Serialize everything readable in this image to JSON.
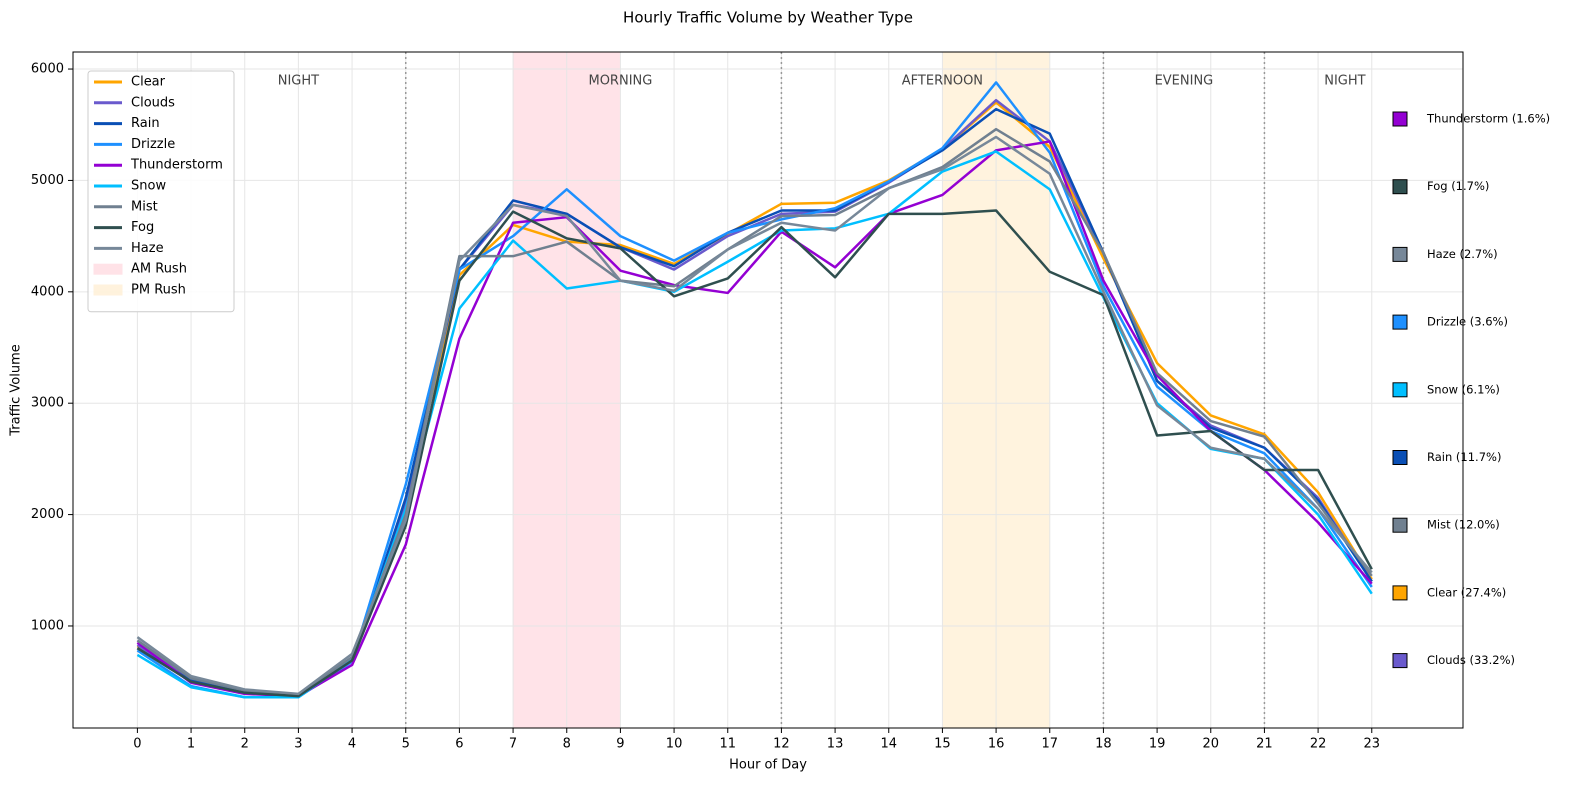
{
  "chart_data": {
    "type": "line",
    "title": "Hourly Traffic Volume by Weather Type",
    "x_label": "Hour of Day",
    "y_label": "Traffic Volume",
    "x": [
      0,
      1,
      2,
      3,
      4,
      5,
      6,
      7,
      8,
      9,
      10,
      11,
      12,
      13,
      14,
      15,
      16,
      17,
      18,
      19,
      20,
      21,
      22,
      23
    ],
    "xlim": [
      -1.2,
      24.7
    ],
    "xticks": [
      0,
      1,
      2,
      3,
      4,
      5,
      6,
      7,
      8,
      9,
      10,
      11,
      12,
      13,
      14,
      15,
      16,
      17,
      18,
      19,
      20,
      21,
      22,
      23
    ],
    "ylim": [
      84,
      6153
    ],
    "yticks": [
      1000,
      2000,
      3000,
      4000,
      5000,
      6000
    ],
    "grid": true,
    "legend": "upper left",
    "series": [
      {
        "name": "Clear",
        "color": "#ffa500",
        "values": [
          820,
          520,
          410,
          375,
          700,
          2050,
          4150,
          4600,
          4450,
          4420,
          4250,
          4520,
          4790,
          4800,
          5000,
          5280,
          5700,
          5300,
          4300,
          3360,
          2890,
          2720,
          2200,
          1420
        ]
      },
      {
        "name": "Clouds",
        "color": "#6a5acd",
        "values": [
          830,
          520,
          410,
          380,
          700,
          2100,
          4200,
          4780,
          4700,
          4400,
          4200,
          4500,
          4700,
          4720,
          4980,
          5280,
          5720,
          5350,
          4350,
          3200,
          2800,
          2600,
          2150,
          1400
        ]
      },
      {
        "name": "Rain",
        "color": "#0a4fb5",
        "values": [
          800,
          510,
          400,
          375,
          680,
          2150,
          4200,
          4820,
          4700,
          4400,
          4230,
          4530,
          4730,
          4730,
          4990,
          5270,
          5640,
          5420,
          4350,
          3200,
          2780,
          2600,
          2130,
          1400
        ]
      },
      {
        "name": "Drizzle",
        "color": "#1e90ff",
        "values": [
          780,
          460,
          360,
          360,
          680,
          2270,
          4200,
          4500,
          4920,
          4500,
          4280,
          4530,
          4650,
          4750,
          4990,
          5290,
          5880,
          5250,
          4050,
          3150,
          2750,
          2550,
          2050,
          1350
        ]
      },
      {
        "name": "Thunderstorm",
        "color": "#9400d3",
        "values": [
          850,
          490,
          390,
          370,
          650,
          1730,
          3580,
          4620,
          4670,
          4190,
          4060,
          3990,
          4540,
          4220,
          4700,
          4870,
          5270,
          5350,
          4100,
          3250,
          2750,
          2400,
          1930,
          1380
        ]
      },
      {
        "name": "Snow",
        "color": "#00bfff",
        "values": [
          740,
          450,
          360,
          360,
          700,
          2050,
          3850,
          4460,
          4030,
          4100,
          4000,
          4270,
          4550,
          4570,
          4700,
          5080,
          5260,
          4920,
          3950,
          3000,
          2590,
          2500,
          2000,
          1290
        ]
      },
      {
        "name": "Mist",
        "color": "#708090",
        "values": [
          870,
          530,
          420,
          385,
          720,
          2000,
          4320,
          4320,
          4450,
          4100,
          4050,
          4380,
          4680,
          4690,
          4930,
          5120,
          5460,
          5170,
          4350,
          3270,
          2840,
          2700,
          2100,
          1450
        ]
      },
      {
        "name": "Fog",
        "color": "#2f4f4f",
        "values": [
          800,
          500,
          400,
          370,
          690,
          1900,
          4100,
          4720,
          4480,
          4390,
          3960,
          4120,
          4580,
          4130,
          4700,
          4700,
          4730,
          4180,
          3970,
          2710,
          2750,
          2400,
          2400,
          1510
        ]
      },
      {
        "name": "Haze",
        "color": "#778899",
        "values": [
          900,
          550,
          430,
          390,
          750,
          1950,
          4280,
          4780,
          4680,
          4100,
          4010,
          4380,
          4620,
          4550,
          4930,
          5100,
          5390,
          5060,
          4000,
          2980,
          2600,
          2500,
          2050,
          1480
        ]
      }
    ],
    "bands": [
      {
        "name": "AM Rush",
        "range": [
          7,
          9
        ],
        "color": "#ffc0cb"
      },
      {
        "name": "PM Rush",
        "range": [
          15,
          17
        ],
        "color": "#ffe4b5"
      }
    ],
    "dividers": [
      5,
      12,
      18,
      21
    ],
    "periods": [
      {
        "label": "NIGHT",
        "range": [
          0,
          6
        ]
      },
      {
        "label": "MORNING",
        "range": [
          6,
          12
        ]
      },
      {
        "label": "AFTERNOON",
        "range": [
          12,
          18
        ]
      },
      {
        "label": "EVENING",
        "range": [
          18,
          21
        ]
      },
      {
        "label": "NIGHT",
        "range": [
          21,
          24
        ]
      }
    ],
    "weather_shares": [
      {
        "label": "Thunderstorm (1.6%)",
        "color": "#9400d3"
      },
      {
        "label": "Fog (1.7%)",
        "color": "#2f4f4f"
      },
      {
        "label": "Haze (2.7%)",
        "color": "#778899"
      },
      {
        "label": "Drizzle (3.6%)",
        "color": "#1e90ff"
      },
      {
        "label": "Snow (6.1%)",
        "color": "#00bfff"
      },
      {
        "label": "Rain (11.7%)",
        "color": "#0a4fb5"
      },
      {
        "label": "Mist (12.0%)",
        "color": "#708090"
      },
      {
        "label": "Clear (27.4%)",
        "color": "#ffa500"
      },
      {
        "label": "Clouds (33.2%)",
        "color": "#6a5acd"
      }
    ]
  }
}
